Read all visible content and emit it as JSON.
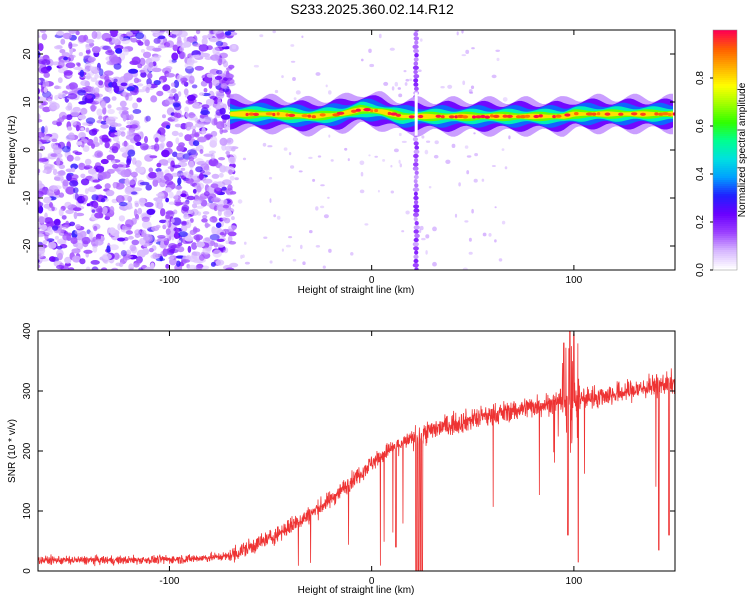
{
  "title": "S233.2025.360.02.14.R12",
  "chart_data": [
    {
      "type": "heatmap",
      "xlabel": "Height of straight line (km)",
      "ylabel": "Frequency (Hz)",
      "xlim": [
        -165,
        150
      ],
      "ylim": [
        -25,
        25
      ],
      "x_ticks": [
        -100,
        0,
        100
      ],
      "y_ticks": [
        -20,
        -10,
        0,
        10,
        20
      ],
      "colorbar": {
        "label": "Normalized spectral amplitude",
        "range": [
          0,
          1
        ],
        "ticks": [
          0.0,
          0.2,
          0.4,
          0.6,
          0.8
        ],
        "colors": [
          "#ffffff",
          "#d6b6ff",
          "#9b40ff",
          "#6a00ff",
          "#2020ff",
          "#00a0ff",
          "#00e0e0",
          "#00ff90",
          "#30ff00",
          "#a0ff00",
          "#ffff00",
          "#ffb000",
          "#ff6000",
          "#ff0050"
        ]
      },
      "signal_band": {
        "x_range": [
          -70,
          150
        ],
        "center_freq_hz": [
          [
            -70,
            7.5
          ],
          [
            -50,
            7.5
          ],
          [
            -30,
            7.0
          ],
          [
            -15,
            7.5
          ],
          [
            -5,
            8.5
          ],
          [
            5,
            8.0
          ],
          [
            15,
            7.0
          ],
          [
            20,
            7.0
          ],
          [
            30,
            7.0
          ],
          [
            50,
            7.0
          ],
          [
            80,
            7.0
          ],
          [
            90,
            7.0
          ],
          [
            95,
            7.0
          ],
          [
            100,
            7.5
          ],
          [
            120,
            7.5
          ],
          [
            150,
            7.5
          ]
        ]
      },
      "noise_region_x": [
        -165,
        -70
      ],
      "vertical_streak_x": 22
    },
    {
      "type": "line",
      "xlabel": "Height of straight line (km)",
      "ylabel": "SNR (10 * v/v)",
      "xlim": [
        -165,
        150
      ],
      "ylim": [
        0,
        400
      ],
      "x_ticks": [
        -100,
        0,
        100
      ],
      "y_ticks": [
        0,
        100,
        200,
        300,
        400
      ],
      "line_color": "#ee3333",
      "trend": [
        [
          -165,
          18
        ],
        [
          -120,
          18
        ],
        [
          -90,
          20
        ],
        [
          -70,
          25
        ],
        [
          -60,
          40
        ],
        [
          -50,
          55
        ],
        [
          -40,
          75
        ],
        [
          -30,
          95
        ],
        [
          -20,
          120
        ],
        [
          -10,
          150
        ],
        [
          0,
          180
        ],
        [
          10,
          205
        ],
        [
          20,
          220
        ],
        [
          30,
          235
        ],
        [
          40,
          245
        ],
        [
          60,
          260
        ],
        [
          80,
          275
        ],
        [
          90,
          280
        ],
        [
          100,
          285
        ],
        [
          120,
          295
        ],
        [
          150,
          315
        ]
      ],
      "dropouts": [
        {
          "x": 22,
          "y": 0
        },
        {
          "x": 23,
          "y": 0
        },
        {
          "x": 24,
          "y": 0
        },
        {
          "x": 25,
          "y": 0
        },
        {
          "x": 12,
          "y": 40
        },
        {
          "x": 102,
          "y": 15
        },
        {
          "x": 97,
          "y": 60
        },
        {
          "x": 142,
          "y": 35
        },
        {
          "x": 147,
          "y": 60
        }
      ],
      "spikes": [
        {
          "x": 95,
          "y": 380
        },
        {
          "x": 98,
          "y": 400
        },
        {
          "x": 100,
          "y": 395
        }
      ]
    }
  ]
}
